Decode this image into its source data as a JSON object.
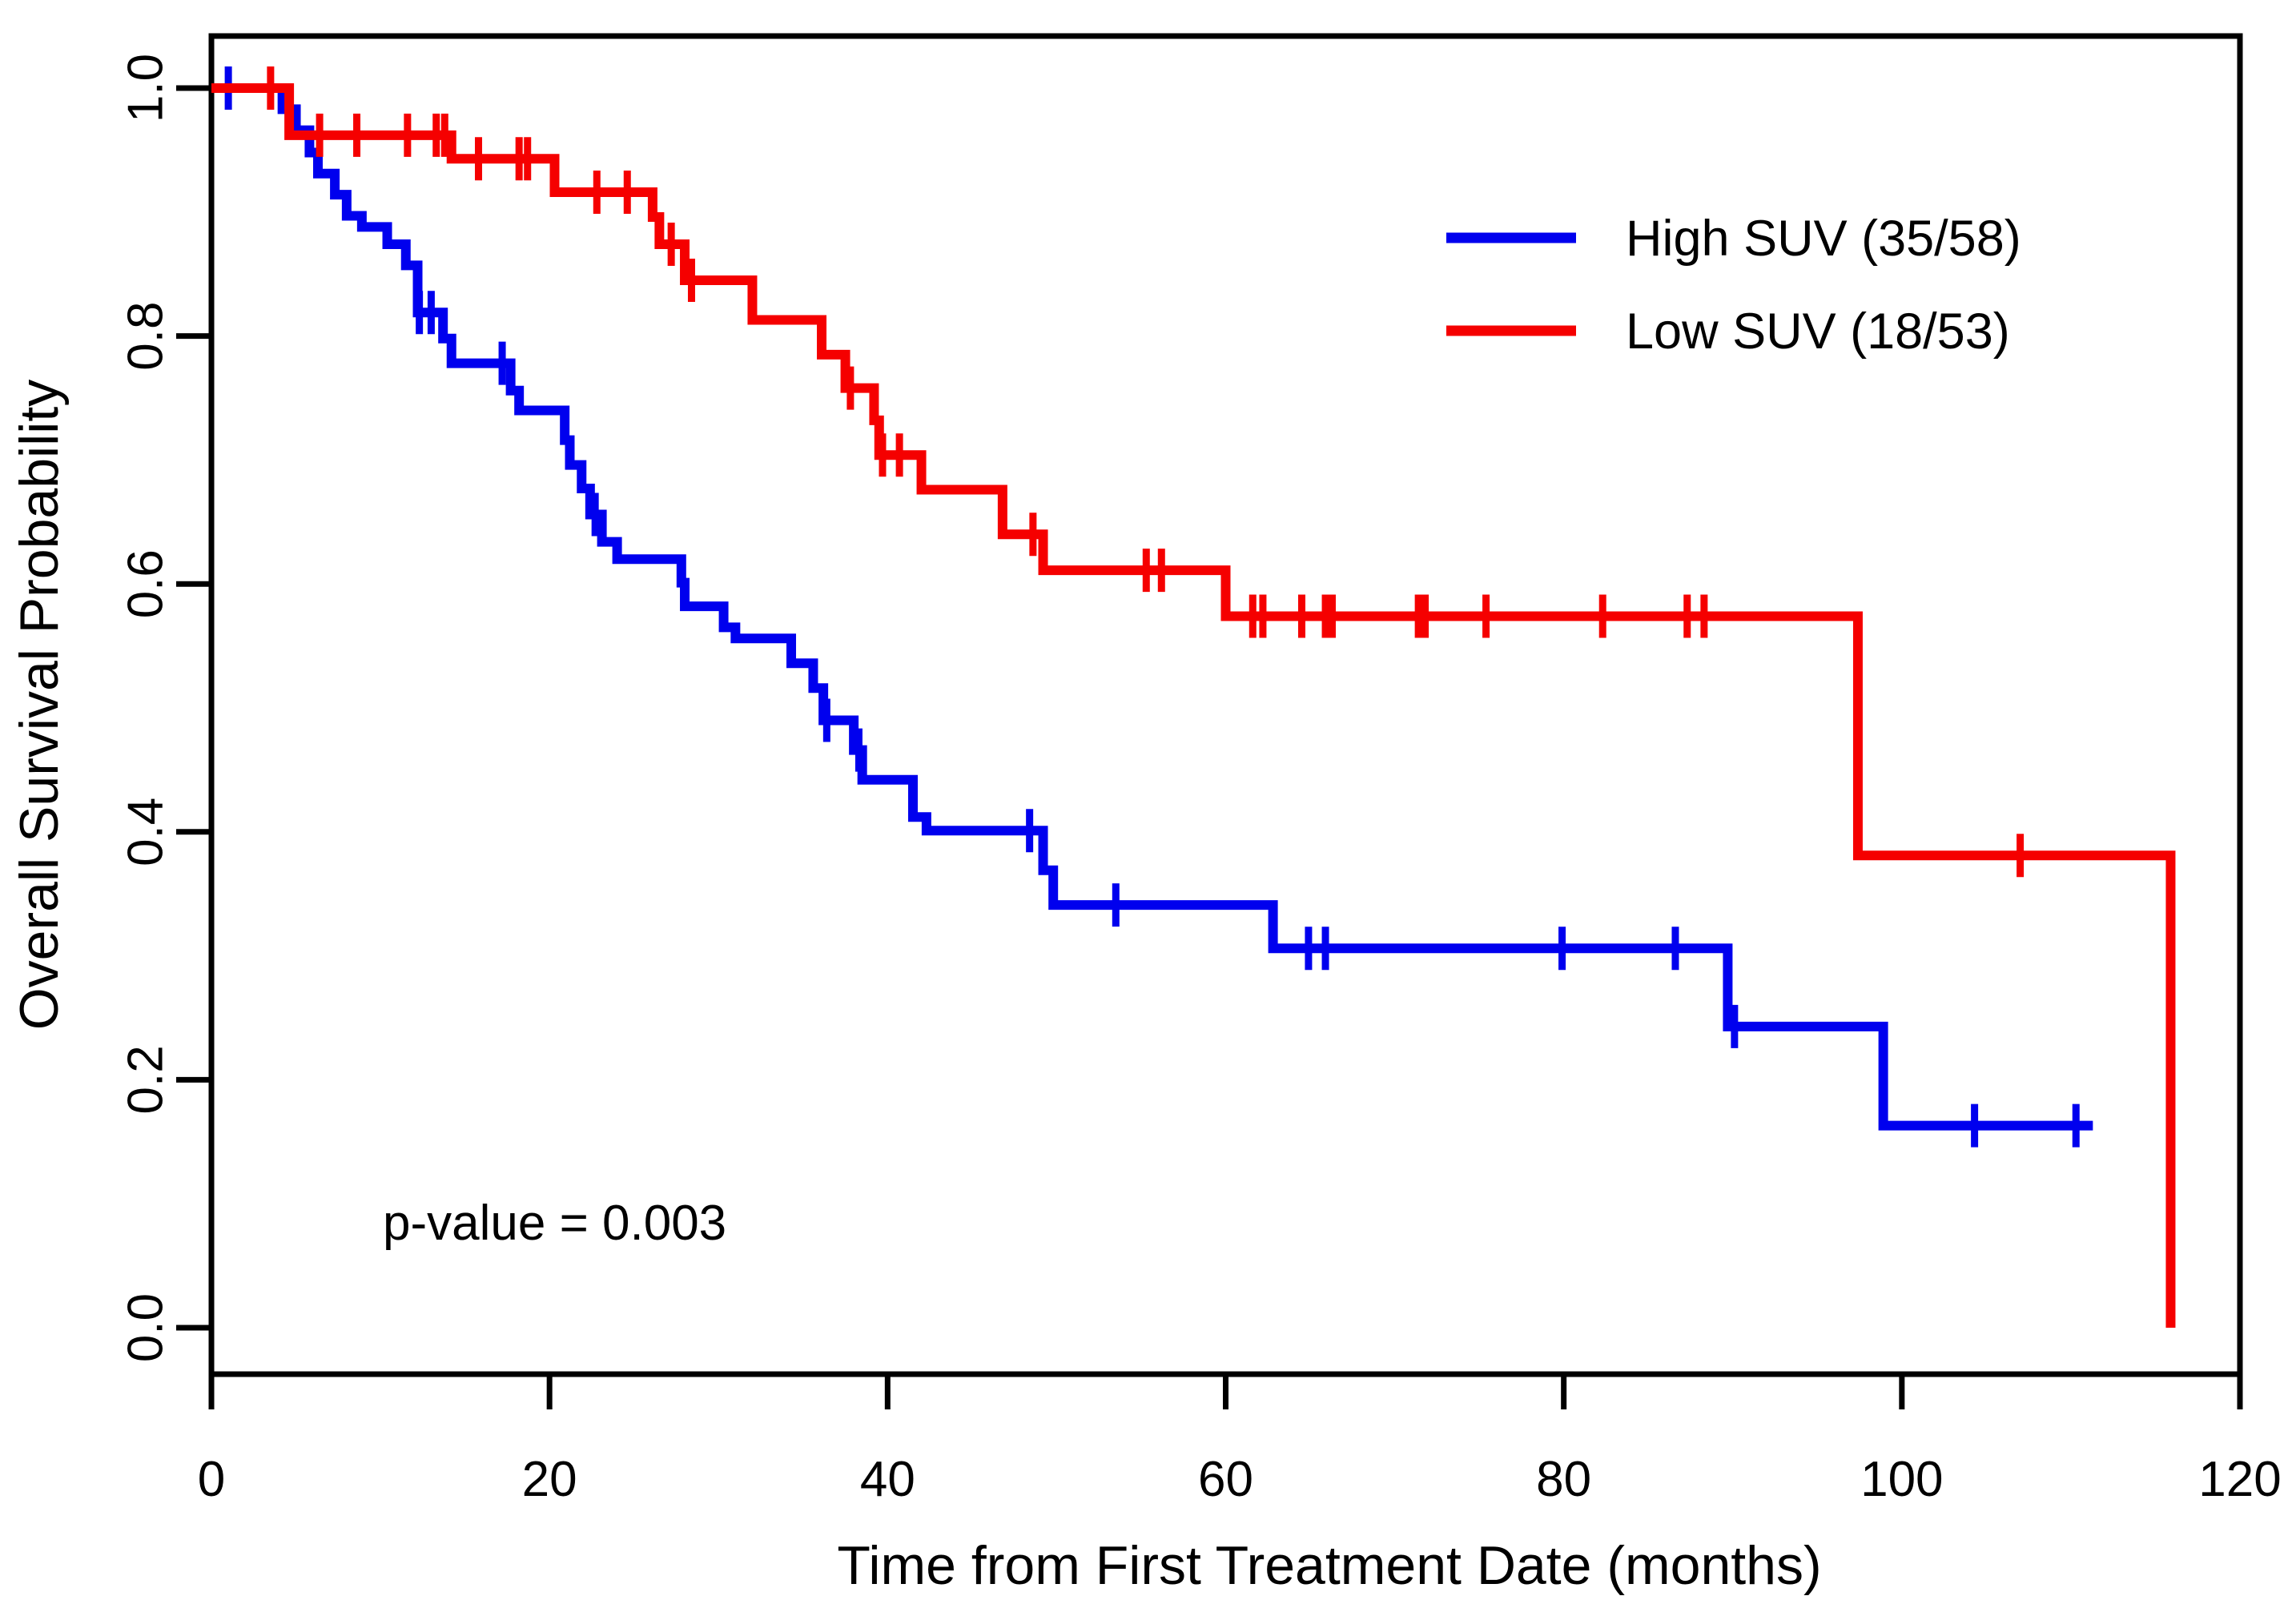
{
  "chart_data": {
    "type": "line",
    "subtype": "kaplan-meier-survival",
    "title": "",
    "xlabel": "Time from First Treatment Date (months)",
    "ylabel": "Overall Survival Probability",
    "xlim": [
      0,
      120
    ],
    "ylim": [
      0.0,
      1.0
    ],
    "xticks": [
      "0",
      "20",
      "40",
      "60",
      "80",
      "100",
      "120"
    ],
    "yticks": [
      "0.0",
      "0.2",
      "0.4",
      "0.6",
      "0.8",
      "1.0"
    ],
    "grid": "off",
    "frame": "full-box",
    "annotation": "p-value = 0.003",
    "legend": {
      "position": "top-right",
      "entries": [
        {
          "id": "high_suv",
          "label": "High SUV (35/58)",
          "color": "#0000EE"
        },
        {
          "id": "low_suv",
          "label": "Low SUV (18/53)",
          "color": "#F50000"
        }
      ]
    },
    "series": [
      {
        "id": "high_suv",
        "name": "High SUV (35/58)",
        "color": "#0000EE",
        "n": 58,
        "events": 35,
        "end_month": 111.3,
        "steps": [
          [
            0,
            1.0
          ],
          [
            4.2,
            0.983
          ],
          [
            5.0,
            0.966
          ],
          [
            5.8,
            0.948
          ],
          [
            6.3,
            0.931
          ],
          [
            7.3,
            0.914
          ],
          [
            8.0,
            0.897
          ],
          [
            8.9,
            0.888
          ],
          [
            10.4,
            0.874
          ],
          [
            11.5,
            0.857
          ],
          [
            12.2,
            0.819
          ],
          [
            13.7,
            0.798
          ],
          [
            14.2,
            0.778
          ],
          [
            17.7,
            0.756
          ],
          [
            18.2,
            0.74
          ],
          [
            20.9,
            0.716
          ],
          [
            21.2,
            0.696
          ],
          [
            21.9,
            0.677
          ],
          [
            22.4,
            0.656
          ],
          [
            23.1,
            0.634
          ],
          [
            24.0,
            0.62
          ],
          [
            27.8,
            0.601
          ],
          [
            28.0,
            0.582
          ],
          [
            30.3,
            0.565
          ],
          [
            31.0,
            0.556
          ],
          [
            34.3,
            0.536
          ],
          [
            35.6,
            0.516
          ],
          [
            36.2,
            0.49
          ],
          [
            38.0,
            0.466
          ],
          [
            38.5,
            0.442
          ],
          [
            41.5,
            0.412
          ],
          [
            42.3,
            0.401
          ],
          [
            49.2,
            0.369
          ],
          [
            49.8,
            0.341
          ],
          [
            62.8,
            0.306
          ],
          [
            89.7,
            0.243
          ],
          [
            98.9,
            0.163
          ]
        ],
        "censors": [
          [
            1.0,
            1.0
          ],
          [
            12.3,
            0.819
          ],
          [
            13.0,
            0.819
          ],
          [
            17.2,
            0.778
          ],
          [
            22.7,
            0.656
          ],
          [
            36.4,
            0.49
          ],
          [
            38.3,
            0.466
          ],
          [
            48.4,
            0.401
          ],
          [
            53.5,
            0.341
          ],
          [
            64.9,
            0.306
          ],
          [
            65.9,
            0.306
          ],
          [
            79.9,
            0.306
          ],
          [
            86.6,
            0.306
          ],
          [
            90.1,
            0.243
          ],
          [
            104.3,
            0.163
          ],
          [
            110.3,
            0.163
          ]
        ]
      },
      {
        "id": "low_suv",
        "name": "Low SUV (18/53)",
        "color": "#F50000",
        "n": 53,
        "events": 18,
        "end_month": 115.9,
        "steps": [
          [
            0,
            1.0
          ],
          [
            4.6,
            0.962
          ],
          [
            14.2,
            0.943
          ],
          [
            20.3,
            0.916
          ],
          [
            26.1,
            0.896
          ],
          [
            26.5,
            0.874
          ],
          [
            28.0,
            0.845
          ],
          [
            32.0,
            0.813
          ],
          [
            36.1,
            0.785
          ],
          [
            37.5,
            0.758
          ],
          [
            39.2,
            0.732
          ],
          [
            39.5,
            0.704
          ],
          [
            42.0,
            0.676
          ],
          [
            46.8,
            0.64
          ],
          [
            49.2,
            0.611
          ],
          [
            60.0,
            0.574
          ],
          [
            97.4,
            0.381
          ],
          [
            115.9,
            0.0
          ]
        ],
        "censors": [
          [
            3.5,
            1.0
          ],
          [
            6.4,
            0.962
          ],
          [
            8.6,
            0.962
          ],
          [
            11.6,
            0.962
          ],
          [
            13.3,
            0.962
          ],
          [
            13.8,
            0.962
          ],
          [
            15.8,
            0.943
          ],
          [
            18.2,
            0.943
          ],
          [
            18.7,
            0.943
          ],
          [
            22.8,
            0.916
          ],
          [
            24.6,
            0.916
          ],
          [
            27.2,
            0.874
          ],
          [
            28.4,
            0.845
          ],
          [
            37.8,
            0.758
          ],
          [
            39.7,
            0.704
          ],
          [
            40.7,
            0.704
          ],
          [
            48.6,
            0.64
          ],
          [
            55.3,
            0.611
          ],
          [
            56.2,
            0.611
          ],
          [
            61.6,
            0.574
          ],
          [
            62.2,
            0.574
          ],
          [
            64.5,
            0.574
          ],
          [
            65.9,
            0.574
          ],
          [
            66.3,
            0.574
          ],
          [
            71.4,
            0.574
          ],
          [
            71.8,
            0.574
          ],
          [
            75.4,
            0.574
          ],
          [
            82.3,
            0.574
          ],
          [
            87.3,
            0.574
          ],
          [
            88.3,
            0.574
          ],
          [
            107.0,
            0.381
          ]
        ]
      }
    ]
  }
}
